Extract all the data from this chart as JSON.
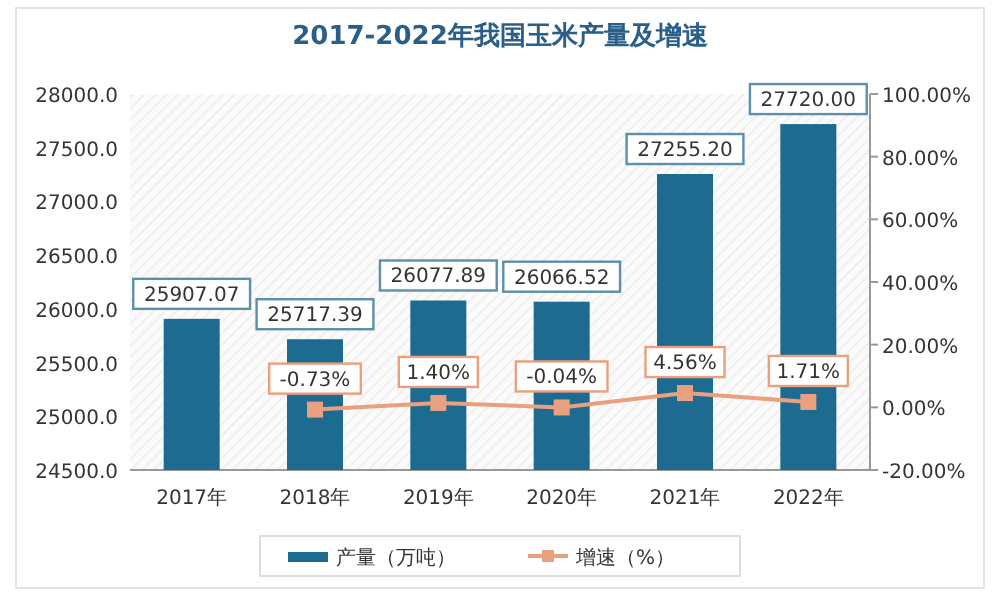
{
  "chart_data": {
    "type": "bar",
    "title": "2017-2022年我国玉米产量及增速",
    "categories": [
      "2017年",
      "2018年",
      "2019年",
      "2020年",
      "2021年",
      "2022年"
    ],
    "series": [
      {
        "name": "产量（万吨）",
        "color": "#1d6b91",
        "values": [
          25907.07,
          25717.39,
          26077.89,
          26066.52,
          27255.2,
          27720.0
        ],
        "value_labels": [
          "25907.07",
          "25717.39",
          "26077.89",
          "26066.52",
          "27255.20",
          "27720.00"
        ]
      },
      {
        "name": "增速（%）",
        "type": "line",
        "axis": "y2",
        "color": "#e9a07f",
        "marker": "square",
        "values": [
          null,
          -0.73,
          1.4,
          -0.04,
          4.56,
          1.71
        ],
        "value_labels": [
          null,
          "-0.73%",
          "1.40%",
          "-0.04%",
          "4.56%",
          "1.71%"
        ]
      }
    ],
    "ylim": [
      24500,
      28000
    ],
    "yticks": [
      {
        "value": 24500,
        "label": "24500.0"
      },
      {
        "value": 25000,
        "label": "25000.0"
      },
      {
        "value": 25500,
        "label": "25500.0"
      },
      {
        "value": 26000,
        "label": "26000.0"
      },
      {
        "value": 26500,
        "label": "26500.0"
      },
      {
        "value": 27000,
        "label": "27000.0"
      },
      {
        "value": 27500,
        "label": "27500.0"
      },
      {
        "value": 28000,
        "label": "28000.0"
      }
    ],
    "y2lim": [
      -20,
      100
    ],
    "y2ticks": [
      {
        "value": -20,
        "label": "-20.00%"
      },
      {
        "value": 0,
        "label": "0.00%"
      },
      {
        "value": 20,
        "label": "20.00%"
      },
      {
        "value": 40,
        "label": "40.00%"
      },
      {
        "value": 60,
        "label": "60.00%"
      },
      {
        "value": 80,
        "label": "80.00%"
      },
      {
        "value": 100,
        "label": "100.00%"
      }
    ],
    "legend": "bottom"
  }
}
